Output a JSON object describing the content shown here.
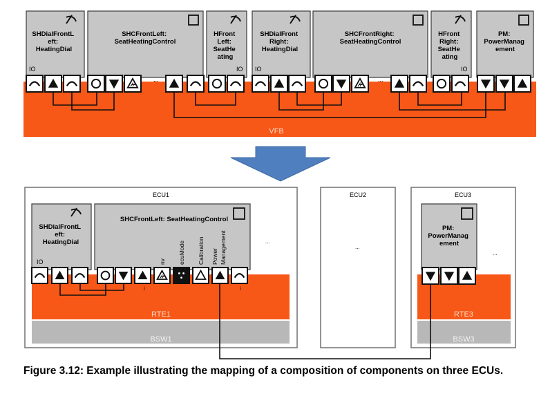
{
  "vfb": {
    "label": "VFB",
    "components": [
      {
        "name": "SHDialFrontLeft: HeatingDial",
        "lines": [
          "SHDialFrontL",
          "eft:",
          "HeatingDial"
        ],
        "io": "IO"
      },
      {
        "name": "SHCFrontLeft: SeatHeatingControl",
        "lines": [
          "SHCFrontLeft:",
          "SeatHeatingControl"
        ],
        "dots": "..."
      },
      {
        "name": "HFrontLeft: SeatHeating",
        "lines": [
          "HFront",
          "Left:",
          "SeatHe",
          "ating"
        ],
        "io": "IO"
      },
      {
        "name": "SHDialFrontRight: HeatingDial",
        "lines": [
          "SHDialFront",
          "Right:",
          "HeatingDial"
        ],
        "io": "IO"
      },
      {
        "name": "SHCFrontRight: SeatHeatingControl",
        "lines": [
          "SHCFrontRight:",
          "SeatHeatingControl"
        ],
        "dots": "..."
      },
      {
        "name": "HFrontRight: SeatHeating",
        "lines": [
          "HFront",
          "Right:",
          "SeatHe",
          "ating"
        ],
        "io": "IO"
      },
      {
        "name": "PM: PowerManagement",
        "lines": [
          "PM:",
          "PowerManag",
          "ement"
        ]
      }
    ]
  },
  "ecu1": {
    "title": "ECU1",
    "rte": "RTE1",
    "bsw": "BSW1",
    "dial": {
      "lines": [
        "SHDialFrontL",
        "eft:",
        "HeatingDial"
      ],
      "io": "IO"
    },
    "shc": {
      "title": "SHCFrontLeft:  SeatHeatingControl",
      "port_labels": {
        "nv": "nv",
        "ecu_mode": "ecuMode",
        "calibration": "Calibration",
        "power": "Power",
        "management": "Management"
      },
      "dots_small": "...",
      "dots_right": "..."
    },
    "markers": [
      "i",
      "i"
    ]
  },
  "ecu2": {
    "title": "ECU2",
    "dots": "..."
  },
  "ecu3": {
    "title": "ECU3",
    "rte": "RTE3",
    "bsw": "BSW3",
    "pm": {
      "lines": [
        "PM:",
        "PowerManag",
        "ement"
      ]
    },
    "dots": "..."
  },
  "caption": "Figure 3.12: Example illustrating the mapping of a composition of components on three ECUs.",
  "colors": {
    "bus": "#f75717",
    "arrow": "#4f7fbf",
    "component": "#c6c6c6",
    "bsw": "#b8b8b8"
  }
}
